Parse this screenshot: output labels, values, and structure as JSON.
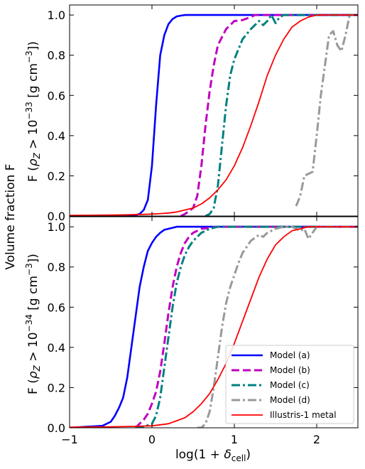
{
  "figure": {
    "ylabel_shared": "Volume fraction F",
    "xlabel": "log(1 + δ_cell)"
  },
  "styles": {
    "Model (a)": {
      "color": "#0000ff",
      "dash": "solid",
      "width": 2.6
    },
    "Model (b)": {
      "color": "#bf00bf",
      "dash": "dashed",
      "width": 3.0
    },
    "Model (c)": {
      "color": "#008080",
      "dash": "dashdot",
      "width": 3.0
    },
    "Model (d)": {
      "color": "#999999",
      "dash": "dashdot",
      "width": 3.0
    },
    "Illustris-1 metal": {
      "color": "#ff0000",
      "dash": "solid",
      "width": 1.8
    }
  },
  "legend": {
    "placement": "lower-right",
    "entries": [
      "Model (a)",
      "Model (b)",
      "Model (c)",
      "Model (d)",
      "Illustris-1 metal"
    ]
  },
  "chart_data": [
    {
      "type": "line",
      "panel": "top",
      "ylabel_prefix": "F (",
      "ylabel_rho": "ρ",
      "ylabel_sub": "Z",
      "ylabel_mid": " > 10",
      "ylabel_exp": "−33",
      "ylabel_unit": " [g cm",
      "ylabel_unit_exp": "−3",
      "ylabel_suffix": "])",
      "xlim": [
        -1,
        2.5
      ],
      "ylim": [
        0,
        1.05
      ],
      "xticks": [
        -1,
        0,
        1,
        2
      ],
      "yticks": [
        0.0,
        0.2,
        0.4,
        0.6,
        0.8,
        1.0
      ],
      "ytick_labels": [
        "0.0",
        "0.2",
        "0.4",
        "0.6",
        "0.8",
        "1.0"
      ],
      "xtick_labels_visible": false,
      "series": [
        {
          "name": "Model (a)",
          "x": [
            -0.5,
            -0.3,
            -0.2,
            -0.15,
            -0.1,
            -0.05,
            0.0,
            0.05,
            0.1,
            0.15,
            0.2,
            0.25,
            0.3,
            0.35,
            0.4,
            0.5,
            0.6,
            0.8,
            1.0,
            2.5
          ],
          "y": [
            0.0,
            0.0,
            0.005,
            0.01,
            0.03,
            0.08,
            0.25,
            0.55,
            0.8,
            0.9,
            0.955,
            0.98,
            0.993,
            0.997,
            1.0,
            1.0,
            1.0,
            1.0,
            1.0,
            1.0
          ]
        },
        {
          "name": "Model (b)",
          "x": [
            0.35,
            0.4,
            0.5,
            0.55,
            0.6,
            0.65,
            0.7,
            0.75,
            0.8,
            0.9,
            1.0,
            1.1,
            1.2,
            1.25,
            1.3,
            1.5,
            1.8,
            2.5
          ],
          "y": [
            0.0,
            0.01,
            0.04,
            0.1,
            0.25,
            0.45,
            0.62,
            0.75,
            0.85,
            0.93,
            0.97,
            0.975,
            0.99,
            1.0,
            1.0,
            1.0,
            1.0,
            1.0
          ]
        },
        {
          "name": "Model (c)",
          "x": [
            0.65,
            0.7,
            0.75,
            0.8,
            0.85,
            0.9,
            0.95,
            1.0,
            1.1,
            1.2,
            1.3,
            1.35,
            1.4,
            1.45,
            1.5,
            1.55,
            1.6,
            1.7,
            1.8,
            2.5
          ],
          "y": [
            0.0,
            0.01,
            0.04,
            0.15,
            0.35,
            0.55,
            0.7,
            0.78,
            0.88,
            0.93,
            0.97,
            0.95,
            0.97,
            1.0,
            0.96,
            0.99,
            1.0,
            1.0,
            1.0,
            1.0
          ]
        },
        {
          "name": "Model (d)",
          "x": [
            1.75,
            1.8,
            1.85,
            1.9,
            1.95,
            2.0,
            2.05,
            2.1,
            2.15,
            2.2,
            2.25,
            2.3,
            2.35,
            2.4,
            2.45
          ],
          "y": [
            0.05,
            0.1,
            0.2,
            0.21,
            0.22,
            0.4,
            0.6,
            0.75,
            0.9,
            0.92,
            0.85,
            0.82,
            0.9,
            1.0,
            1.0
          ]
        },
        {
          "name": "Illustris-1 metal",
          "x": [
            -1.0,
            -0.5,
            -0.3,
            -0.1,
            0.0,
            0.1,
            0.2,
            0.3,
            0.4,
            0.5,
            0.6,
            0.7,
            0.8,
            0.9,
            1.0,
            1.1,
            1.2,
            1.3,
            1.4,
            1.5,
            1.6,
            1.7,
            1.8,
            1.9,
            2.0,
            2.5
          ],
          "y": [
            0.003,
            0.005,
            0.006,
            0.008,
            0.01,
            0.012,
            0.015,
            0.02,
            0.03,
            0.04,
            0.06,
            0.09,
            0.13,
            0.18,
            0.25,
            0.34,
            0.45,
            0.57,
            0.7,
            0.8,
            0.88,
            0.94,
            0.97,
            0.99,
            1.0,
            1.0
          ]
        }
      ]
    },
    {
      "type": "line",
      "panel": "bottom",
      "ylabel_prefix": "F (",
      "ylabel_rho": "ρ",
      "ylabel_sub": "Z",
      "ylabel_mid": " > 10",
      "ylabel_exp": "−34",
      "ylabel_unit": " [g cm",
      "ylabel_unit_exp": "−3",
      "ylabel_suffix": "])",
      "xlim": [
        -1,
        2.5
      ],
      "ylim": [
        0,
        1.05
      ],
      "xticks": [
        -1,
        0,
        1,
        2
      ],
      "xtick_labels": [
        "−1",
        "0",
        "1",
        "2"
      ],
      "yticks": [
        0.0,
        0.2,
        0.4,
        0.6,
        0.8,
        1.0
      ],
      "ytick_labels": [
        "0.0",
        "0.2",
        "0.4",
        "0.6",
        "0.8",
        "1.0"
      ],
      "series": [
        {
          "name": "Model (a)",
          "x": [
            -1.0,
            -0.8,
            -0.6,
            -0.5,
            -0.45,
            -0.4,
            -0.35,
            -0.3,
            -0.25,
            -0.2,
            -0.15,
            -0.1,
            -0.05,
            0.0,
            0.05,
            0.1,
            0.15,
            0.2,
            0.3,
            0.4,
            0.5,
            1.0,
            2.5
          ],
          "y": [
            0.0,
            0.005,
            0.01,
            0.03,
            0.06,
            0.1,
            0.15,
            0.25,
            0.4,
            0.55,
            0.7,
            0.8,
            0.88,
            0.92,
            0.95,
            0.97,
            0.985,
            0.99,
            1.0,
            1.0,
            1.0,
            1.0,
            1.0
          ]
        },
        {
          "name": "Model (b)",
          "x": [
            -0.2,
            -0.15,
            -0.1,
            -0.05,
            0.0,
            0.05,
            0.1,
            0.15,
            0.2,
            0.25,
            0.3,
            0.35,
            0.4,
            0.45,
            0.5,
            0.55,
            0.6,
            0.7,
            0.8,
            0.9,
            1.0,
            2.5
          ],
          "y": [
            0.0,
            0.02,
            0.04,
            0.07,
            0.12,
            0.18,
            0.28,
            0.42,
            0.57,
            0.7,
            0.8,
            0.87,
            0.92,
            0.95,
            0.97,
            0.98,
            0.99,
            0.995,
            1.0,
            1.0,
            1.0,
            1.0
          ]
        },
        {
          "name": "Model (c)",
          "x": [
            -0.2,
            -0.1,
            0.0,
            0.05,
            0.1,
            0.15,
            0.2,
            0.25,
            0.3,
            0.35,
            0.4,
            0.45,
            0.5,
            0.55,
            0.6,
            0.7,
            0.8,
            0.9,
            1.0,
            2.5
          ],
          "y": [
            0.0,
            0.005,
            0.02,
            0.06,
            0.15,
            0.3,
            0.45,
            0.6,
            0.72,
            0.8,
            0.86,
            0.9,
            0.93,
            0.95,
            0.97,
            0.99,
            1.0,
            1.0,
            1.0,
            1.0
          ]
        },
        {
          "name": "Model (d)",
          "x": [
            0.55,
            0.6,
            0.65,
            0.7,
            0.75,
            0.8,
            0.85,
            0.9,
            0.95,
            1.0,
            1.05,
            1.1,
            1.2,
            1.3,
            1.35,
            1.4,
            1.5,
            1.6,
            1.7,
            1.8,
            1.85,
            1.9,
            1.95,
            2.0,
            2.05,
            2.1,
            2.2,
            2.5
          ],
          "y": [
            0.0,
            0.0,
            0.02,
            0.08,
            0.2,
            0.35,
            0.5,
            0.62,
            0.7,
            0.76,
            0.82,
            0.87,
            0.93,
            0.96,
            0.95,
            0.97,
            0.99,
            1.0,
            1.0,
            0.98,
            0.99,
            0.94,
            0.97,
            1.0,
            1.0,
            1.0,
            1.0,
            1.0
          ]
        },
        {
          "name": "Illustris-1 metal",
          "x": [
            -1.0,
            -0.5,
            -0.2,
            0.0,
            0.1,
            0.2,
            0.3,
            0.4,
            0.5,
            0.6,
            0.7,
            0.8,
            0.9,
            1.0,
            1.1,
            1.2,
            1.3,
            1.4,
            1.5,
            1.6,
            1.7,
            1.8,
            1.9,
            2.0,
            2.5
          ],
          "y": [
            0.003,
            0.005,
            0.007,
            0.01,
            0.015,
            0.02,
            0.035,
            0.05,
            0.08,
            0.12,
            0.17,
            0.24,
            0.32,
            0.42,
            0.53,
            0.64,
            0.75,
            0.84,
            0.91,
            0.95,
            0.98,
            0.99,
            1.0,
            1.0,
            1.0
          ]
        }
      ]
    }
  ]
}
